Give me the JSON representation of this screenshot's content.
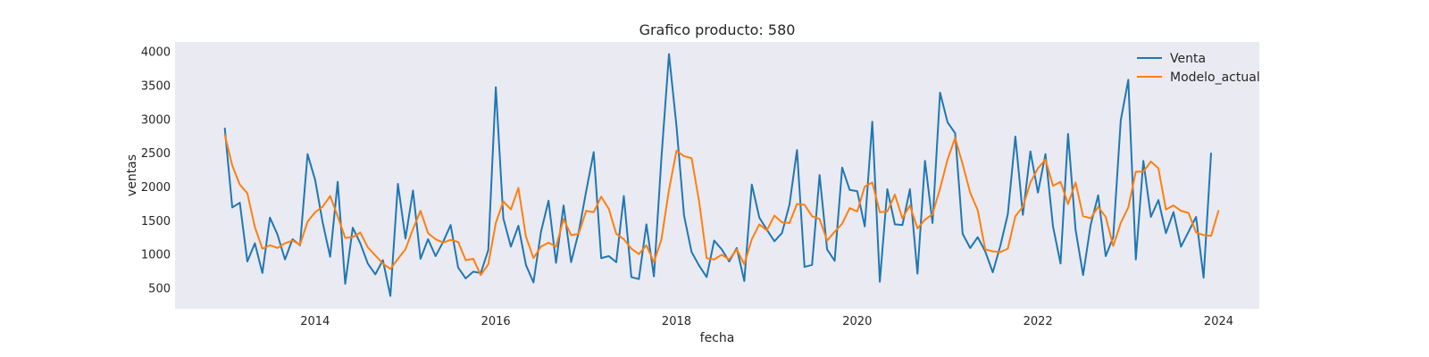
{
  "chart_data": {
    "type": "line",
    "title": "Grafico producto: 580",
    "xlabel": "fecha",
    "ylabel": "ventas",
    "x_start": "2013-01",
    "x_frequency": "monthly",
    "xlim": [
      2012.45,
      2024.45
    ],
    "ylim": [
      190,
      4140
    ],
    "xticks": [
      2014,
      2016,
      2018,
      2020,
      2022,
      2024
    ],
    "yticks": [
      500,
      1000,
      1500,
      2000,
      2500,
      3000,
      3500,
      4000
    ],
    "grid": false,
    "legend_position": "top-right",
    "background": "#eaeaf2",
    "series": [
      {
        "name": "Venta",
        "color": "#1f77b4",
        "values": [
          2870,
          1690,
          1760,
          890,
          1160,
          720,
          1540,
          1290,
          920,
          1220,
          1130,
          2480,
          2100,
          1470,
          960,
          2070,
          560,
          1390,
          1160,
          860,
          700,
          910,
          380,
          2040,
          1230,
          1940,
          930,
          1220,
          970,
          1180,
          1430,
          800,
          640,
          740,
          720,
          1060,
          3470,
          1530,
          1110,
          1420,
          840,
          580,
          1330,
          1790,
          870,
          1720,
          880,
          1320,
          1930,
          2510,
          940,
          970,
          880,
          1860,
          660,
          630,
          1440,
          670,
          2430,
          3960,
          2890,
          1570,
          1030,
          830,
          660,
          1200,
          1070,
          890,
          1090,
          600,
          2030,
          1540,
          1360,
          1190,
          1310,
          1730,
          2540,
          810,
          840,
          2170,
          1070,
          900,
          2280,
          1950,
          1930,
          1410,
          2960,
          590,
          1960,
          1440,
          1430,
          1960,
          710,
          2380,
          1460,
          3390,
          2950,
          2790,
          1300,
          1090,
          1250,
          1040,
          730,
          1120,
          1590,
          2740,
          1580,
          2520,
          1910,
          2480,
          1410,
          860,
          2780,
          1360,
          690,
          1430,
          1870,
          970,
          1250,
          2980,
          3580,
          920,
          2380,
          1550,
          1800,
          1310,
          1620,
          1110,
          1330,
          1550,
          650,
          2500
        ]
      },
      {
        "name": "Modelo_actual",
        "color": "#ff7f0e",
        "values": [
          2770,
          2310,
          2030,
          1900,
          1400,
          1080,
          1130,
          1090,
          1160,
          1200,
          1140,
          1480,
          1620,
          1700,
          1860,
          1560,
          1240,
          1250,
          1320,
          1100,
          980,
          860,
          780,
          930,
          1070,
          1370,
          1640,
          1310,
          1220,
          1170,
          1210,
          1180,
          910,
          930,
          690,
          850,
          1460,
          1780,
          1660,
          1980,
          1260,
          940,
          1110,
          1170,
          1110,
          1520,
          1280,
          1300,
          1640,
          1620,
          1850,
          1670,
          1300,
          1220,
          1080,
          1000,
          1130,
          880,
          1220,
          1950,
          2530,
          2450,
          2420,
          1780,
          940,
          920,
          990,
          920,
          1070,
          850,
          1220,
          1440,
          1350,
          1570,
          1470,
          1460,
          1740,
          1730,
          1560,
          1520,
          1200,
          1330,
          1450,
          1680,
          1630,
          2000,
          2060,
          1620,
          1630,
          1880,
          1530,
          1720,
          1380,
          1510,
          1590,
          1970,
          2400,
          2720,
          2330,
          1910,
          1650,
          1070,
          1040,
          1030,
          1080,
          1560,
          1700,
          2060,
          2270,
          2400,
          2010,
          2070,
          1740,
          2060,
          1560,
          1530,
          1700,
          1550,
          1120,
          1460,
          1690,
          2220,
          2220,
          2370,
          2270,
          1660,
          1720,
          1640,
          1610,
          1320,
          1280,
          1270,
          1650
        ]
      }
    ]
  }
}
